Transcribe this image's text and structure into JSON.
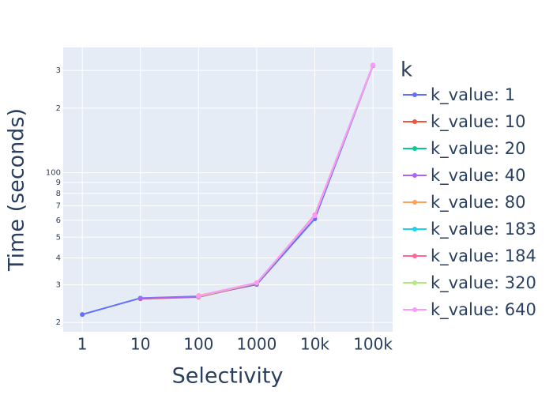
{
  "chart_data": {
    "type": "line",
    "x_label": "Selectivity",
    "y_label": "Time (seconds)",
    "legend_title": "k",
    "x_log": true,
    "y_log": true,
    "grid": true,
    "legend_position": "right",
    "x": [
      1,
      10,
      100,
      1000,
      10000,
      100000
    ],
    "xlim": [
      0.47,
      218000
    ],
    "xticks": [
      1,
      10,
      100,
      1000,
      {
        "value": 10000,
        "label": "10k"
      },
      {
        "value": 100000,
        "label": "100k"
      }
    ],
    "ylim": [
      18.1,
      384
    ],
    "yticks": [
      {
        "value": 20,
        "label": "2"
      },
      {
        "value": 30,
        "label": "3"
      },
      {
        "value": 40,
        "label": "4"
      },
      {
        "value": 50,
        "label": "5"
      },
      {
        "value": 60,
        "label": "6"
      },
      {
        "value": 70,
        "label": "7"
      },
      {
        "value": 80,
        "label": "8"
      },
      {
        "value": 90,
        "label": "9"
      },
      100,
      {
        "value": 200,
        "label": "2"
      },
      {
        "value": 300,
        "label": "3"
      }
    ],
    "series": [
      {
        "name": "k_value: 1",
        "color": "#636efa",
        "values": [
          21.8,
          26.0,
          26.5,
          30.1,
          60.9,
          316
        ]
      },
      {
        "name": "k_value: 10",
        "color": "#EF553B",
        "values": [
          null,
          25.8,
          26.3,
          30.3,
          63,
          316
        ]
      },
      {
        "name": "k_value: 20",
        "color": "#00cc96",
        "values": [
          null,
          25.9,
          26.4,
          30.4,
          63,
          317
        ]
      },
      {
        "name": "k_value: 40",
        "color": "#ab63fa",
        "values": [
          null,
          25.9,
          26.4,
          30.4,
          63,
          317
        ]
      },
      {
        "name": "k_value: 80",
        "color": "#FFA15A",
        "values": [
          null,
          null,
          26.7,
          30.6,
          63,
          317
        ]
      },
      {
        "name": "k_value: 183",
        "color": "#19d3f3",
        "values": [
          null,
          null,
          26.5,
          30.5,
          63,
          317
        ]
      },
      {
        "name": "k_value: 184",
        "color": "#FF6692",
        "values": [
          null,
          null,
          26.5,
          30.5,
          63.5,
          317
        ]
      },
      {
        "name": "k_value: 320",
        "color": "#B6E880",
        "values": [
          null,
          null,
          26.5,
          30.6,
          63,
          318
        ]
      },
      {
        "name": "k_value: 640",
        "color": "#FF97FF",
        "values": [
          null,
          null,
          26.6,
          30.7,
          63,
          318
        ]
      }
    ]
  }
}
